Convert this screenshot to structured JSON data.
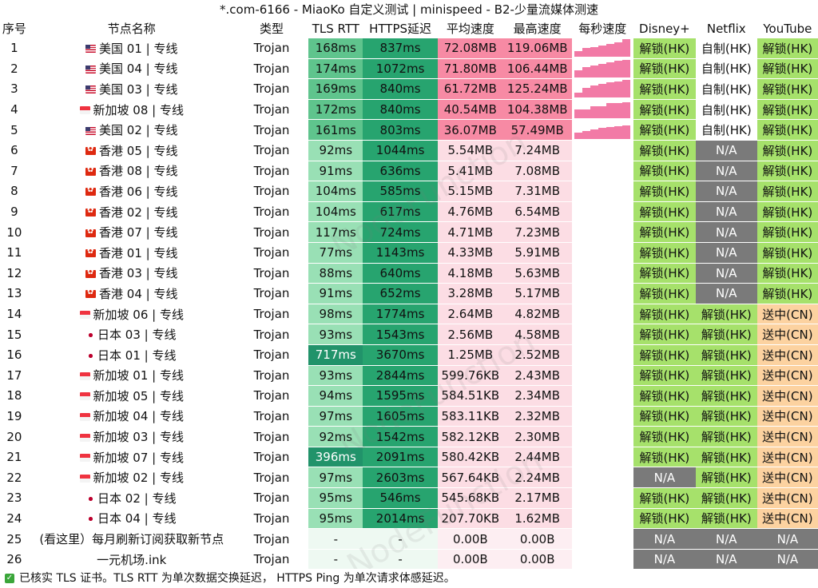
{
  "title": "*.com-6166 - MiaoKo 自定义测试 | minispeed - B2-少量流媒体测速",
  "columns": [
    "序号",
    "节点名称",
    "类型",
    "TLS RTT",
    "HTTPS延迟",
    "平均速度",
    "最高速度",
    "每秒速度",
    "Disney+",
    "Netflix",
    "YouTube"
  ],
  "watermark": "NodeFunction",
  "rows": [
    {
      "no": "1",
      "flag": "us",
      "name": "美国 01 | 专线",
      "type": "Trojan",
      "tls": "168ms",
      "https": "837ms",
      "avg": "72.08MB",
      "max": "119.06MB",
      "bars": [
        0.35,
        0.5,
        0.55,
        0.65,
        0.75,
        0.85,
        1.0
      ],
      "disney": "解锁(HK)",
      "netflix": "自制(HK)",
      "youtube": "解锁(HK)"
    },
    {
      "no": "2",
      "flag": "us",
      "name": "美国 04 | 专线",
      "type": "Trojan",
      "tls": "174ms",
      "https": "1072ms",
      "avg": "71.80MB",
      "max": "106.44MB",
      "bars": [
        0.4,
        0.6,
        0.7,
        0.75,
        0.85,
        0.95,
        1.0
      ],
      "disney": "解锁(HK)",
      "netflix": "自制(HK)",
      "youtube": "解锁(HK)"
    },
    {
      "no": "3",
      "flag": "us",
      "name": "美国 03 | 专线",
      "type": "Trojan",
      "tls": "169ms",
      "https": "840ms",
      "avg": "61.72MB",
      "max": "125.24MB",
      "bars": [
        0.3,
        0.55,
        0.7,
        0.8,
        0.9,
        0.95,
        1.0
      ],
      "disney": "解锁(HK)",
      "netflix": "自制(HK)",
      "youtube": "解锁(HK)"
    },
    {
      "no": "4",
      "flag": "sg",
      "name": "新加坡 08 | 专线",
      "type": "Trojan",
      "tls": "172ms",
      "https": "840ms",
      "avg": "40.54MB",
      "max": "104.38MB",
      "bars": [
        0.5,
        0.5,
        0.7,
        0.7,
        0.85,
        0.85,
        0.9
      ],
      "disney": "解锁(HK)",
      "netflix": "自制(HK)",
      "youtube": "解锁(HK)"
    },
    {
      "no": "5",
      "flag": "us",
      "name": "美国 02 | 专线",
      "type": "Trojan",
      "tls": "161ms",
      "https": "803ms",
      "avg": "36.07MB",
      "max": "57.49MB",
      "bars": [
        0.35,
        0.45,
        0.55,
        0.6,
        0.65,
        0.7,
        0.75
      ],
      "disney": "解锁(HK)",
      "netflix": "自制(HK)",
      "youtube": "解锁(HK)"
    },
    {
      "no": "6",
      "flag": "hk",
      "name": "香港 05 | 专线",
      "type": "Trojan",
      "tls": "92ms",
      "https": "1044ms",
      "avg": "5.54MB",
      "max": "7.24MB",
      "bars": [],
      "disney": "解锁(HK)",
      "netflix": "N/A",
      "youtube": "解锁(HK)"
    },
    {
      "no": "7",
      "flag": "hk",
      "name": "香港 08 | 专线",
      "type": "Trojan",
      "tls": "91ms",
      "https": "636ms",
      "avg": "5.41MB",
      "max": "7.08MB",
      "bars": [],
      "disney": "解锁(HK)",
      "netflix": "N/A",
      "youtube": "解锁(HK)"
    },
    {
      "no": "8",
      "flag": "hk",
      "name": "香港 06 | 专线",
      "type": "Trojan",
      "tls": "104ms",
      "https": "585ms",
      "avg": "5.15MB",
      "max": "7.31MB",
      "bars": [],
      "disney": "解锁(HK)",
      "netflix": "N/A",
      "youtube": "解锁(HK)"
    },
    {
      "no": "9",
      "flag": "hk",
      "name": "香港 02 | 专线",
      "type": "Trojan",
      "tls": "104ms",
      "https": "617ms",
      "avg": "4.76MB",
      "max": "6.54MB",
      "bars": [],
      "disney": "解锁(HK)",
      "netflix": "N/A",
      "youtube": "解锁(HK)"
    },
    {
      "no": "10",
      "flag": "hk",
      "name": "香港 07 | 专线",
      "type": "Trojan",
      "tls": "117ms",
      "https": "724ms",
      "avg": "4.71MB",
      "max": "7.23MB",
      "bars": [],
      "disney": "解锁(HK)",
      "netflix": "N/A",
      "youtube": "解锁(HK)"
    },
    {
      "no": "11",
      "flag": "hk",
      "name": "香港 01 | 专线",
      "type": "Trojan",
      "tls": "77ms",
      "https": "1143ms",
      "avg": "4.33MB",
      "max": "5.91MB",
      "bars": [],
      "disney": "解锁(HK)",
      "netflix": "N/A",
      "youtube": "解锁(HK)"
    },
    {
      "no": "12",
      "flag": "hk",
      "name": "香港 03 | 专线",
      "type": "Trojan",
      "tls": "88ms",
      "https": "640ms",
      "avg": "4.18MB",
      "max": "5.63MB",
      "bars": [],
      "disney": "解锁(HK)",
      "netflix": "N/A",
      "youtube": "解锁(HK)"
    },
    {
      "no": "13",
      "flag": "hk",
      "name": "香港 04 | 专线",
      "type": "Trojan",
      "tls": "91ms",
      "https": "652ms",
      "avg": "3.28MB",
      "max": "5.17MB",
      "bars": [],
      "disney": "解锁(HK)",
      "netflix": "N/A",
      "youtube": "解锁(HK)"
    },
    {
      "no": "14",
      "flag": "sg",
      "name": "新加坡 06 | 专线",
      "type": "Trojan",
      "tls": "98ms",
      "https": "1774ms",
      "avg": "2.64MB",
      "max": "4.82MB",
      "bars": [],
      "disney": "解锁(HK)",
      "netflix": "解锁(HK)",
      "youtube": "送中(CN)"
    },
    {
      "no": "15",
      "flag": "jp",
      "name": "日本 03 | 专线",
      "type": "Trojan",
      "tls": "93ms",
      "https": "1543ms",
      "avg": "2.56MB",
      "max": "4.58MB",
      "bars": [],
      "disney": "解锁(HK)",
      "netflix": "解锁(HK)",
      "youtube": "送中(CN)"
    },
    {
      "no": "16",
      "flag": "jp",
      "name": "日本 01 | 专线",
      "type": "Trojan",
      "tls": "717ms",
      "https": "3670ms",
      "avg": "1.25MB",
      "max": "2.52MB",
      "bars": [],
      "disney": "解锁(HK)",
      "netflix": "解锁(HK)",
      "youtube": "送中(CN)"
    },
    {
      "no": "17",
      "flag": "sg",
      "name": "新加坡 01 | 专线",
      "type": "Trojan",
      "tls": "93ms",
      "https": "2844ms",
      "avg": "599.76KB",
      "max": "2.43MB",
      "bars": [],
      "disney": "解锁(HK)",
      "netflix": "解锁(HK)",
      "youtube": "送中(CN)"
    },
    {
      "no": "18",
      "flag": "sg",
      "name": "新加坡 05 | 专线",
      "type": "Trojan",
      "tls": "94ms",
      "https": "1595ms",
      "avg": "584.51KB",
      "max": "2.34MB",
      "bars": [],
      "disney": "解锁(HK)",
      "netflix": "解锁(HK)",
      "youtube": "送中(CN)"
    },
    {
      "no": "19",
      "flag": "sg",
      "name": "新加坡 04 | 专线",
      "type": "Trojan",
      "tls": "97ms",
      "https": "1605ms",
      "avg": "583.11KB",
      "max": "2.32MB",
      "bars": [],
      "disney": "解锁(HK)",
      "netflix": "解锁(HK)",
      "youtube": "送中(CN)"
    },
    {
      "no": "20",
      "flag": "sg",
      "name": "新加坡 03 | 专线",
      "type": "Trojan",
      "tls": "92ms",
      "https": "1542ms",
      "avg": "582.12KB",
      "max": "2.30MB",
      "bars": [],
      "disney": "解锁(HK)",
      "netflix": "解锁(HK)",
      "youtube": "送中(CN)"
    },
    {
      "no": "21",
      "flag": "sg",
      "name": "新加坡 07 | 专线",
      "type": "Trojan",
      "tls": "396ms",
      "https": "2091ms",
      "avg": "580.42KB",
      "max": "2.44MB",
      "bars": [],
      "disney": "解锁(HK)",
      "netflix": "解锁(HK)",
      "youtube": "送中(CN)"
    },
    {
      "no": "22",
      "flag": "sg",
      "name": "新加坡 02 | 专线",
      "type": "Trojan",
      "tls": "97ms",
      "https": "2603ms",
      "avg": "567.64KB",
      "max": "2.24MB",
      "bars": [],
      "disney": "N/A",
      "netflix": "解锁(HK)",
      "youtube": "送中(CN)"
    },
    {
      "no": "23",
      "flag": "jp",
      "name": "日本 02 | 专线",
      "type": "Trojan",
      "tls": "95ms",
      "https": "546ms",
      "avg": "545.68KB",
      "max": "2.17MB",
      "bars": [],
      "disney": "解锁(HK)",
      "netflix": "解锁(HK)",
      "youtube": "送中(CN)"
    },
    {
      "no": "24",
      "flag": "jp",
      "name": "日本 04 | 专线",
      "type": "Trojan",
      "tls": "95ms",
      "https": "2014ms",
      "avg": "207.70KB",
      "max": "1.62MB",
      "bars": [],
      "disney": "解锁(HK)",
      "netflix": "解锁(HK)",
      "youtube": "送中(CN)"
    },
    {
      "no": "25",
      "flag": "",
      "name": "(看这里）每月刷新订阅获取新节点",
      "type": "Trojan",
      "tls": "-",
      "https": "-",
      "avg": "0.00B",
      "max": "0.00B",
      "bars": [],
      "disney": "N/A",
      "netflix": "N/A",
      "youtube": "N/A"
    },
    {
      "no": "26",
      "flag": "",
      "name": "一元机场.ink",
      "type": "Trojan",
      "tls": "-",
      "https": "-",
      "avg": "0.00B",
      "max": "0.00B",
      "bars": [],
      "disney": "N/A",
      "netflix": "N/A",
      "youtube": "N/A"
    }
  ],
  "footer": "已核实 TLS 证书。TLS RTT 为单次数据交换延迟， HTTPS Ping 为单次请求体感延迟。",
  "colors": {
    "tls_light": "#99e0b5",
    "tls_mid": "#5fc48d",
    "tls_dark": "#21936a",
    "https": "#27a46f",
    "speed_fast": "#f78aa4",
    "speed_slow": "#fcdde4",
    "speed_none": "#fdeef2",
    "unlock": "#a6e16b",
    "selfmade": "#ffffff",
    "na": "#7a7a7a",
    "cn": "#fcd2a0",
    "bar": "#f27aa6"
  }
}
